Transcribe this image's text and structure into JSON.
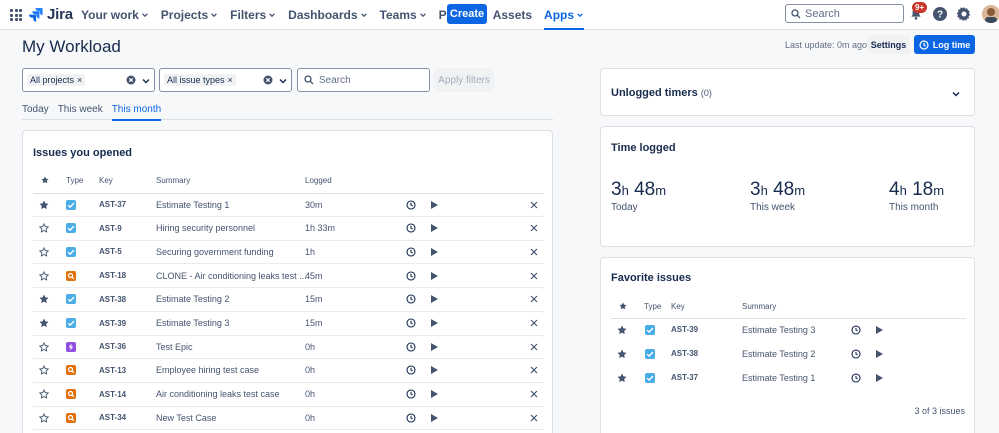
{
  "nav": {
    "logo": "Jira",
    "items": [
      {
        "label": "Your work",
        "chevron": true
      },
      {
        "label": "Projects",
        "chevron": true
      },
      {
        "label": "Filters",
        "chevron": true
      },
      {
        "label": "Dashboards",
        "chevron": true
      },
      {
        "label": "Teams",
        "chevron": true
      },
      {
        "label": "Plans",
        "chevron": true
      },
      {
        "label": "Assets",
        "chevron": false
      },
      {
        "label": "Apps",
        "chevron": true,
        "active": true
      }
    ],
    "create_label": "Create",
    "search_placeholder": "Search",
    "notification_badge": "9+"
  },
  "page": {
    "title": "My Workload",
    "last_update": "Last update: 0m ago",
    "settings_label": "Settings",
    "log_time_label": "Log time"
  },
  "filters": {
    "projects_chip": "All projects",
    "issue_types_chip": "All issue types",
    "search_placeholder": "Search",
    "apply_label": "Apply filters"
  },
  "tabs": [
    {
      "label": "Today",
      "active": false
    },
    {
      "label": "This week",
      "active": false
    },
    {
      "label": "This month",
      "active": true
    }
  ],
  "issues_opened": {
    "title": "Issues you opened",
    "columns": {
      "type": "Type",
      "key": "Key",
      "summary": "Summary",
      "logged": "Logged"
    },
    "rows": [
      {
        "starred": true,
        "type": "task",
        "key": "AST-37",
        "summary": "Estimate Testing 1",
        "logged": "30m"
      },
      {
        "starred": false,
        "type": "task",
        "key": "AST-9",
        "summary": "Hiring security personnel",
        "logged": "1h 33m"
      },
      {
        "starred": false,
        "type": "task",
        "key": "AST-5",
        "summary": "Securing government funding",
        "logged": "1h"
      },
      {
        "starred": false,
        "type": "bug",
        "key": "AST-18",
        "summary": "CLONE - Air conditioning leaks test ...",
        "logged": "45m"
      },
      {
        "starred": true,
        "type": "task",
        "key": "AST-38",
        "summary": "Estimate Testing 2",
        "logged": "15m"
      },
      {
        "starred": true,
        "type": "task",
        "key": "AST-39",
        "summary": "Estimate Testing 3",
        "logged": "15m"
      },
      {
        "starred": false,
        "type": "epic",
        "key": "AST-36",
        "summary": "Test Epic",
        "logged": "0h"
      },
      {
        "starred": false,
        "type": "bug",
        "key": "AST-13",
        "summary": "Employee hiring test case",
        "logged": "0h"
      },
      {
        "starred": false,
        "type": "bug",
        "key": "AST-14",
        "summary": "Air conditioning leaks test case",
        "logged": "0h"
      },
      {
        "starred": false,
        "type": "bug",
        "key": "AST-34",
        "summary": "New Test Case",
        "logged": "0h"
      }
    ]
  },
  "unlogged_timers": {
    "title": "Unlogged timers",
    "count": "(0)"
  },
  "time_logged": {
    "title": "Time logged",
    "items": [
      {
        "h": "3",
        "m": "48",
        "label": "Today"
      },
      {
        "h": "3",
        "m": "48",
        "label": "This week"
      },
      {
        "h": "4",
        "m": "18",
        "label": "This month"
      }
    ],
    "unit_h": "h",
    "unit_m": "m"
  },
  "favorite_issues": {
    "title": "Favorite issues",
    "columns": {
      "type": "Type",
      "key": "Key",
      "summary": "Summary"
    },
    "rows": [
      {
        "key": "AST-39",
        "summary": "Estimate Testing 3",
        "type": "task"
      },
      {
        "key": "AST-38",
        "summary": "Estimate Testing 2",
        "type": "task"
      },
      {
        "key": "AST-37",
        "summary": "Estimate Testing 1",
        "type": "task"
      }
    ],
    "footer": "3 of 3 issues"
  },
  "colors": {
    "accent": "#0c66e4",
    "task": "#4bade8",
    "bug": "#e2710b",
    "epic": "#904ee2",
    "badge": "#c9372c"
  }
}
